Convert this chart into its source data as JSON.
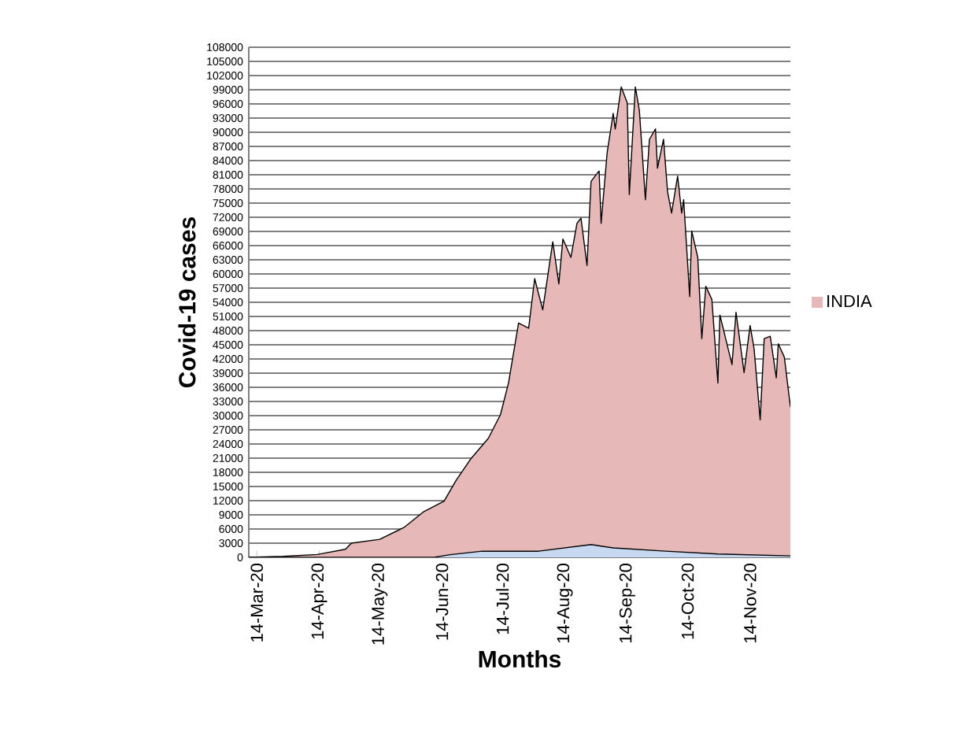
{
  "chart_data": {
    "type": "area",
    "xlabel": "Months",
    "ylabel": "Covid-19 cases",
    "x": [
      "2020-03-10",
      "2020-03-27",
      "2020-04-13",
      "2020-04-27",
      "2020-04-30",
      "2020-05-14",
      "2020-05-26",
      "2020-06-05",
      "2020-06-15",
      "2020-06-21",
      "2020-06-28",
      "2020-07-07",
      "2020-07-13",
      "2020-07-17",
      "2020-07-22",
      "2020-07-27",
      "2020-07-30",
      "2020-08-03",
      "2020-08-08",
      "2020-08-11",
      "2020-08-13",
      "2020-08-17",
      "2020-08-20",
      "2020-08-22",
      "2020-08-25",
      "2020-08-27",
      "2020-08-31",
      "2020-09-01",
      "2020-09-04",
      "2020-09-07",
      "2020-09-08",
      "2020-09-11",
      "2020-09-14",
      "2020-09-15",
      "2020-09-18",
      "2020-09-20",
      "2020-09-23",
      "2020-09-25",
      "2020-09-28",
      "2020-09-29",
      "2020-10-02",
      "2020-10-04",
      "2020-10-06",
      "2020-10-09",
      "2020-10-11",
      "2020-10-12",
      "2020-10-15",
      "2020-10-16",
      "2020-10-19",
      "2020-10-21",
      "2020-10-23",
      "2020-10-26",
      "2020-10-29",
      "2020-10-30",
      "2020-11-05",
      "2020-11-07",
      "2020-11-11",
      "2020-11-14",
      "2020-11-16",
      "2020-11-19",
      "2020-11-21",
      "2020-11-24",
      "2020-11-27",
      "2020-11-28",
      "2020-12-01",
      "2020-12-04"
    ],
    "series": [
      {
        "name": "INDIA",
        "color": "#e6b9b8",
        "values": [
          0,
          200,
          600,
          1700,
          3000,
          3800,
          6300,
          9700,
          11900,
          16300,
          20700,
          25200,
          30200,
          36900,
          49600,
          48500,
          59000,
          52400,
          66800,
          57900,
          67400,
          63500,
          70700,
          71800,
          61800,
          79600,
          81800,
          70700,
          85700,
          94000,
          90700,
          99600,
          96200,
          76800,
          99600,
          94600,
          75700,
          88500,
          90700,
          82400,
          88500,
          77400,
          72900,
          80700,
          72900,
          75700,
          55200,
          69100,
          63500,
          46300,
          57400,
          54600,
          36900,
          51300,
          40800,
          51900,
          39100,
          49100,
          44100,
          29100,
          46300,
          46800,
          38000,
          45200,
          42400,
          31900
        ]
      },
      {
        "color": "#c6d9f1",
        "x": [
          "2020-03-10",
          "2020-06-10",
          "2020-06-18",
          "2020-07-04",
          "2020-08-01",
          "2020-08-27",
          "2020-09-07",
          "2020-10-03",
          "2020-10-29",
          "2020-12-04"
        ],
        "values": [
          0,
          0,
          550,
          1300,
          1300,
          2700,
          2000,
          1300,
          700,
          300
        ]
      }
    ],
    "xlim": [
      "2020-03-10",
      "2020-12-04"
    ],
    "xticks": [
      {
        "value": "2020-03-14",
        "label": "14-Mar-20"
      },
      {
        "value": "2020-04-14",
        "label": "14-Apr-20"
      },
      {
        "value": "2020-05-14",
        "label": "14-May-20"
      },
      {
        "value": "2020-06-14",
        "label": "14-Jun-20"
      },
      {
        "value": "2020-07-14",
        "label": "14-Jul-20"
      },
      {
        "value": "2020-08-14",
        "label": "14-Aug-20"
      },
      {
        "value": "2020-09-14",
        "label": "14-Sep-20"
      },
      {
        "value": "2020-10-14",
        "label": "14-Oct-20"
      },
      {
        "value": "2020-11-14",
        "label": "14-Nov-20"
      }
    ],
    "ylim": [
      0,
      108000
    ],
    "yticks": [
      0,
      3000,
      6000,
      9000,
      12000,
      15000,
      18000,
      21000,
      24000,
      27000,
      30000,
      33000,
      36000,
      39000,
      42000,
      45000,
      48000,
      51000,
      54000,
      57000,
      60000,
      63000,
      66000,
      69000,
      72000,
      75000,
      78000,
      81000,
      84000,
      87000,
      90000,
      93000,
      96000,
      99000,
      102000,
      105000,
      108000
    ],
    "grid": "y",
    "legend": "right"
  }
}
